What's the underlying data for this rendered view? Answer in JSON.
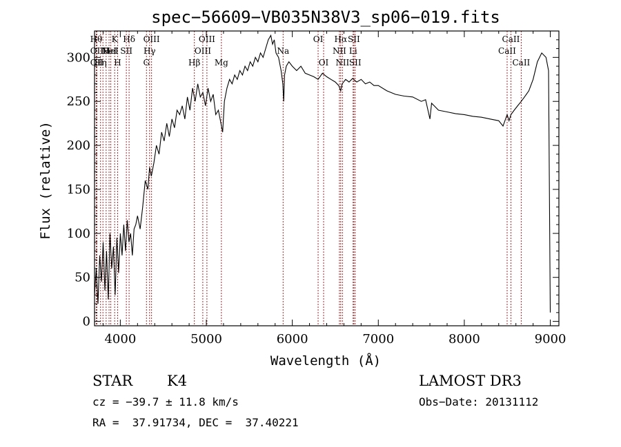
{
  "chart_data": {
    "type": "line",
    "title": "spec−56609−VB035N38V3_sp06−019.fits",
    "xlabel": "Wavelength (Å)",
    "ylabel": "Flux (relative)",
    "xlim": [
      3700,
      9100
    ],
    "ylim": [
      -5,
      330
    ],
    "xticks": [
      4000,
      5000,
      6000,
      7000,
      8000,
      9000
    ],
    "yticks": [
      0,
      50,
      100,
      150,
      200,
      250,
      300
    ],
    "grid": false,
    "series": [
      {
        "x": [
          3700,
          3720,
          3740,
          3760,
          3780,
          3800,
          3820,
          3840,
          3860,
          3880,
          3900,
          3920,
          3940,
          3960,
          3980,
          4000,
          4020,
          4040,
          4060,
          4080,
          4100,
          4120,
          4140,
          4160,
          4180,
          4200,
          4230,
          4260,
          4290,
          4320,
          4340,
          4360,
          4390,
          4420,
          4450,
          4480,
          4510,
          4540,
          4570,
          4600,
          4630,
          4660,
          4690,
          4720,
          4750,
          4780,
          4810,
          4840,
          4870,
          4900,
          4930,
          4960,
          4990,
          5020,
          5050,
          5080,
          5110,
          5140,
          5170,
          5190,
          5210,
          5240,
          5270,
          5300,
          5330,
          5360,
          5390,
          5420,
          5450,
          5480,
          5510,
          5540,
          5570,
          5600,
          5630,
          5660,
          5690,
          5720,
          5750,
          5770,
          5790,
          5810,
          5840,
          5870,
          5890,
          5900,
          5910,
          5930,
          5960,
          6000,
          6050,
          6100,
          6150,
          6200,
          6250,
          6300,
          6350,
          6400,
          6450,
          6500,
          6540,
          6563,
          6580,
          6620,
          6660,
          6700,
          6750,
          6800,
          6850,
          6900,
          6950,
          7000,
          7100,
          7200,
          7300,
          7400,
          7500,
          7550,
          7600,
          7620,
          7650,
          7700,
          7800,
          7900,
          8000,
          8100,
          8200,
          8300,
          8400,
          8450,
          8498,
          8520,
          8542,
          8580,
          8620,
          8662,
          8700,
          8750,
          8800,
          8850,
          8900,
          8950,
          8980,
          9000
        ],
        "y": [
          30,
          60,
          20,
          75,
          45,
          90,
          35,
          80,
          25,
          100,
          60,
          85,
          30,
          95,
          55,
          100,
          75,
          110,
          80,
          115,
          90,
          100,
          75,
          105,
          110,
          120,
          105,
          130,
          160,
          150,
          175,
          165,
          180,
          200,
          190,
          215,
          205,
          225,
          210,
          230,
          220,
          240,
          235,
          245,
          230,
          255,
          240,
          265,
          250,
          270,
          255,
          260,
          245,
          265,
          250,
          258,
          235,
          240,
          225,
          215,
          250,
          265,
          275,
          270,
          280,
          275,
          285,
          280,
          290,
          285,
          295,
          290,
          300,
          295,
          305,
          300,
          310,
          320,
          325,
          315,
          320,
          305,
          300,
          285,
          270,
          250,
          280,
          290,
          295,
          290,
          285,
          290,
          282,
          280,
          278,
          275,
          282,
          278,
          275,
          272,
          268,
          262,
          270,
          275,
          272,
          276,
          272,
          275,
          270,
          272,
          268,
          268,
          262,
          258,
          256,
          255,
          250,
          252,
          230,
          248,
          245,
          240,
          238,
          236,
          235,
          233,
          232,
          230,
          228,
          222,
          235,
          228,
          235,
          240,
          245,
          250,
          255,
          262,
          275,
          295,
          305,
          300,
          285,
          10
        ]
      }
    ],
    "line_markers": [
      {
        "x": 3720,
        "row": 0,
        "label": "Hθ"
      },
      {
        "x": 3727,
        "row": 1,
        "label": "OII"
      },
      {
        "x": 3727,
        "row": 2,
        "label": "OII"
      },
      {
        "x": 3770,
        "row": 2,
        "label": "Hη"
      },
      {
        "x": 3798,
        "row": 0,
        "label": ""
      },
      {
        "x": 3835,
        "row": 1,
        "label": "H"
      },
      {
        "x": 3869,
        "row": 1,
        "label": "NeI"
      },
      {
        "x": 3889,
        "row": 1,
        "label": "HeI"
      },
      {
        "x": 3934,
        "row": 0,
        "label": "K"
      },
      {
        "x": 3969,
        "row": 2,
        "label": "H"
      },
      {
        "x": 4070,
        "row": 1,
        "label": "SII"
      },
      {
        "x": 4102,
        "row": 0,
        "label": "Hδ"
      },
      {
        "x": 4304,
        "row": 2,
        "label": "G"
      },
      {
        "x": 4340,
        "row": 1,
        "label": "Hγ"
      },
      {
        "x": 4363,
        "row": 0,
        "label": "OIII"
      },
      {
        "x": 4861,
        "row": 2,
        "label": "Hβ"
      },
      {
        "x": 4959,
        "row": 1,
        "label": "OIII"
      },
      {
        "x": 5007,
        "row": 0,
        "label": "OIII"
      },
      {
        "x": 5175,
        "row": 2,
        "label": "Mg"
      },
      {
        "x": 5893,
        "row": 1,
        "label": "Na"
      },
      {
        "x": 6300,
        "row": 0,
        "label": "OI"
      },
      {
        "x": 6364,
        "row": 2,
        "label": "OI"
      },
      {
        "x": 6548,
        "row": 1,
        "label": "NII"
      },
      {
        "x": 6563,
        "row": 0,
        "label": "Hα"
      },
      {
        "x": 6583,
        "row": 2,
        "label": "NII"
      },
      {
        "x": 6707,
        "row": 1,
        "label": "Li"
      },
      {
        "x": 6716,
        "row": 0,
        "label": "SII"
      },
      {
        "x": 6731,
        "row": 2,
        "label": "SII"
      },
      {
        "x": 8498,
        "row": 1,
        "label": "CaII"
      },
      {
        "x": 8542,
        "row": 0,
        "label": "CaII"
      },
      {
        "x": 8662,
        "row": 2,
        "label": "CaII"
      }
    ],
    "colors": {
      "spectrum": "#000000",
      "markers": "#b22222",
      "axes": "#000000"
    }
  },
  "footer": {
    "object_class": "STAR",
    "subclass": "K4",
    "survey": "LAMOST DR3",
    "redshift": "cz = −39.7 ± 11.8 km/s",
    "obs_date": "Obs−Date: 20131112",
    "coords": "RA =  37.91734, DEC =  37.40221"
  }
}
